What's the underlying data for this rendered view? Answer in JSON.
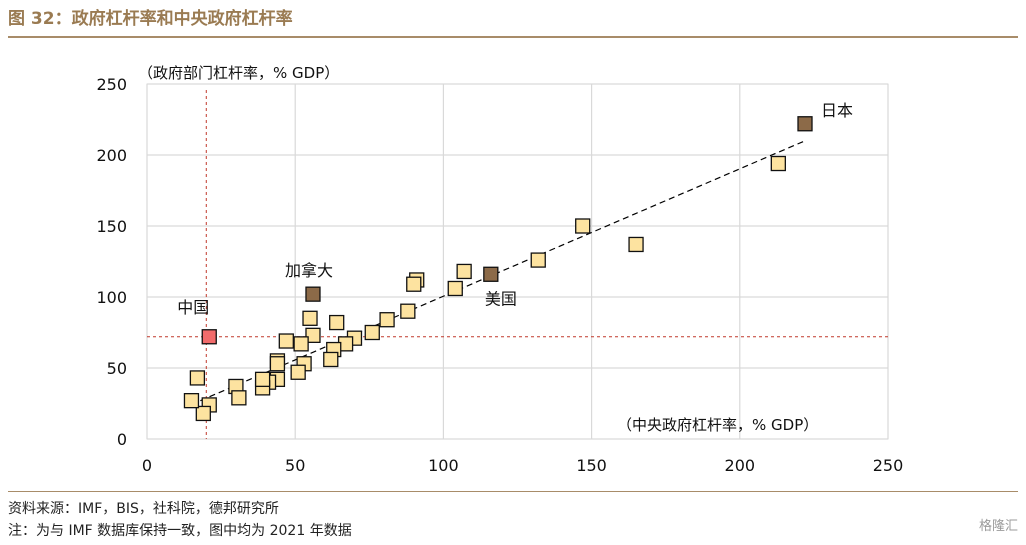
{
  "figure": {
    "title": "图 32：政府杠杆率和中央政府杠杆率",
    "source": "资料来源：IMF，BIS，社科院，德邦研究所",
    "note": "注：为与 IMF 数据库保持一致，图中均为 2021 年数据",
    "watermark": "格隆汇"
  },
  "colors": {
    "title": "#9a7b52",
    "rule": "#a88c69",
    "marker_default": "#fde3a0",
    "marker_highlight": "#8c6a48",
    "marker_china": "#f26b6b",
    "reference_line": "#c0392b",
    "grid": "#d9d9d9",
    "trend": "#000000"
  },
  "chart_data": {
    "type": "scatter",
    "ylabel": "（政府部门杠杆率，% GDP）",
    "xlabel": "（中央政府杠杆率，% GDP）",
    "xlim": [
      0,
      250
    ],
    "ylim": [
      0,
      250
    ],
    "xticks": [
      "0",
      "50",
      "100",
      "150",
      "200",
      "250"
    ],
    "yticks": [
      "0",
      "50",
      "100",
      "150",
      "200",
      "250"
    ],
    "grid": true,
    "trendline": {
      "x": [
        18,
        222
      ],
      "y": [
        27,
        210
      ],
      "style": "dashed"
    },
    "reference_lines": {
      "x": 20,
      "y": 72
    },
    "labeled_points": [
      {
        "label": "日本",
        "x": 222,
        "y": 222,
        "color": "#8c6a48"
      },
      {
        "label": "美国",
        "x": 116,
        "y": 116,
        "color": "#8c6a48"
      },
      {
        "label": "加拿大",
        "x": 56,
        "y": 102,
        "color": "#8c6a48"
      },
      {
        "label": "中国",
        "x": 21,
        "y": 72,
        "color": "#f26b6b"
      }
    ],
    "points": [
      {
        "x": 213,
        "y": 194
      },
      {
        "x": 147,
        "y": 150
      },
      {
        "x": 165,
        "y": 137
      },
      {
        "x": 132,
        "y": 126
      },
      {
        "x": 107,
        "y": 118
      },
      {
        "x": 104,
        "y": 106
      },
      {
        "x": 91,
        "y": 112
      },
      {
        "x": 90,
        "y": 109
      },
      {
        "x": 88,
        "y": 90
      },
      {
        "x": 81,
        "y": 84
      },
      {
        "x": 76,
        "y": 75
      },
      {
        "x": 70,
        "y": 71
      },
      {
        "x": 67,
        "y": 67
      },
      {
        "x": 63,
        "y": 63
      },
      {
        "x": 64,
        "y": 82
      },
      {
        "x": 62,
        "y": 56
      },
      {
        "x": 56,
        "y": 73
      },
      {
        "x": 55,
        "y": 85
      },
      {
        "x": 53,
        "y": 53
      },
      {
        "x": 52,
        "y": 67
      },
      {
        "x": 51,
        "y": 47
      },
      {
        "x": 47,
        "y": 69
      },
      {
        "x": 44,
        "y": 55
      },
      {
        "x": 44,
        "y": 53
      },
      {
        "x": 44,
        "y": 42
      },
      {
        "x": 41,
        "y": 40
      },
      {
        "x": 39,
        "y": 36
      },
      {
        "x": 39,
        "y": 42
      },
      {
        "x": 30,
        "y": 37
      },
      {
        "x": 31,
        "y": 29
      },
      {
        "x": 21,
        "y": 24
      },
      {
        "x": 19,
        "y": 18
      },
      {
        "x": 17,
        "y": 43
      },
      {
        "x": 15,
        "y": 27
      }
    ]
  }
}
